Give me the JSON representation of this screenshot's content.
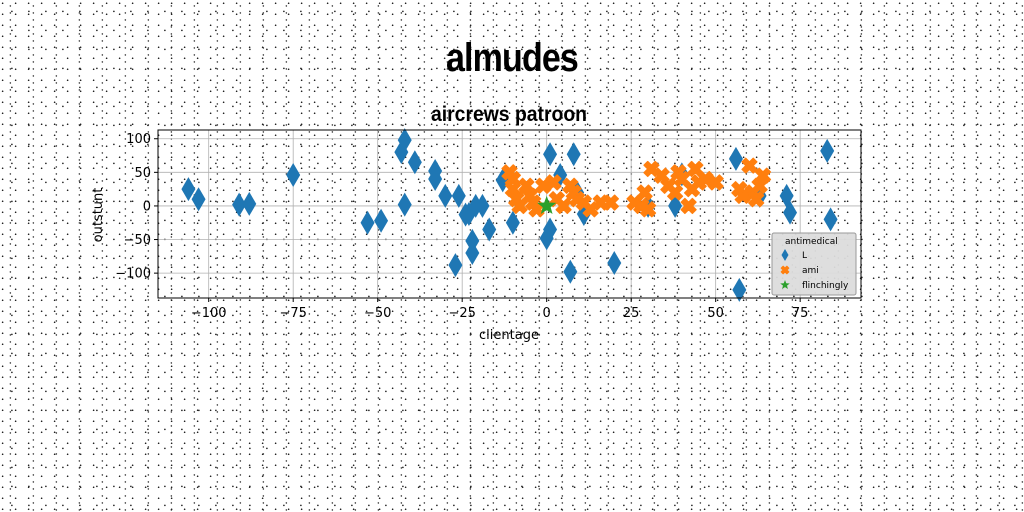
{
  "figure": {
    "suptitle": "almudes"
  },
  "chart_data": {
    "type": "scatter",
    "title": "aircrews patroon",
    "xlabel": "clientage",
    "ylabel": "outstunt",
    "xlim": [
      -115,
      93
    ],
    "ylim": [
      -137,
      113
    ],
    "xticks": [
      -100,
      -75,
      -50,
      -25,
      0,
      25,
      50,
      75
    ],
    "xtick_labels": [
      "−100",
      "−75",
      "−50",
      "−25",
      "0",
      "25",
      "50",
      "75"
    ],
    "yticks": [
      100,
      50,
      0,
      -50,
      -100
    ],
    "ytick_labels": [
      "100",
      "50",
      "0",
      "−50",
      "−100"
    ],
    "grid": true,
    "legend": {
      "title": "antimedical",
      "placement": "lower-right"
    },
    "series": [
      {
        "name": "L",
        "marker": "diamond",
        "color": "#1f77b4",
        "points": [
          [
            -106,
            25
          ],
          [
            -103,
            10
          ],
          [
            -91,
            2
          ],
          [
            -88,
            3
          ],
          [
            -75,
            46
          ],
          [
            -53,
            -25
          ],
          [
            -49,
            -22
          ],
          [
            -43,
            80
          ],
          [
            -42,
            98
          ],
          [
            -42,
            2
          ],
          [
            -39,
            65
          ],
          [
            -33,
            40
          ],
          [
            -33,
            52
          ],
          [
            -30,
            15
          ],
          [
            -27,
            -88
          ],
          [
            -26,
            15
          ],
          [
            -24,
            -13
          ],
          [
            -23,
            -12
          ],
          [
            -22,
            -70
          ],
          [
            -22,
            -52
          ],
          [
            -21,
            0
          ],
          [
            -19,
            0
          ],
          [
            -17,
            -35
          ],
          [
            -13,
            38
          ],
          [
            -10,
            -25
          ],
          [
            0,
            -48
          ],
          [
            1,
            -35
          ],
          [
            1,
            77
          ],
          [
            4,
            46
          ],
          [
            7,
            -98
          ],
          [
            8,
            77
          ],
          [
            9,
            20
          ],
          [
            11,
            -12
          ],
          [
            20,
            -85
          ],
          [
            30,
            0
          ],
          [
            40,
            47
          ],
          [
            38,
            0
          ],
          [
            56,
            70
          ],
          [
            57,
            -125
          ],
          [
            63,
            15
          ],
          [
            71,
            15
          ],
          [
            72,
            -10
          ],
          [
            83,
            82
          ],
          [
            84,
            -20
          ]
        ]
      },
      {
        "name": "ami",
        "marker": "x",
        "color": "#ff7f0e",
        "points": [
          [
            -11,
            50
          ],
          [
            -10,
            40
          ],
          [
            -10,
            25
          ],
          [
            -9,
            10
          ],
          [
            -8,
            0
          ],
          [
            -6,
            30
          ],
          [
            -5,
            15
          ],
          [
            -4,
            5
          ],
          [
            -3,
            -5
          ],
          [
            -1,
            30
          ],
          [
            2,
            35
          ],
          [
            3,
            10
          ],
          [
            5,
            0
          ],
          [
            7,
            30
          ],
          [
            8,
            20
          ],
          [
            9,
            10
          ],
          [
            11,
            5
          ],
          [
            13,
            -5
          ],
          [
            16,
            5
          ],
          [
            19,
            5
          ],
          [
            26,
            5
          ],
          [
            28,
            0
          ],
          [
            29,
            20
          ],
          [
            30,
            -5
          ],
          [
            31,
            55
          ],
          [
            34,
            45
          ],
          [
            36,
            30
          ],
          [
            38,
            20
          ],
          [
            39,
            50
          ],
          [
            40,
            40
          ],
          [
            42,
            0
          ],
          [
            43,
            25
          ],
          [
            44,
            55
          ],
          [
            45,
            35
          ],
          [
            47,
            40
          ],
          [
            50,
            35
          ],
          [
            57,
            25
          ],
          [
            58,
            15
          ],
          [
            60,
            60
          ],
          [
            61,
            20
          ],
          [
            63,
            30
          ],
          [
            64,
            45
          ],
          [
            62,
            10
          ]
        ]
      },
      {
        "name": "flinchingly",
        "marker": "star",
        "color": "#2ca02c",
        "points": [
          [
            0,
            0
          ]
        ]
      }
    ]
  }
}
